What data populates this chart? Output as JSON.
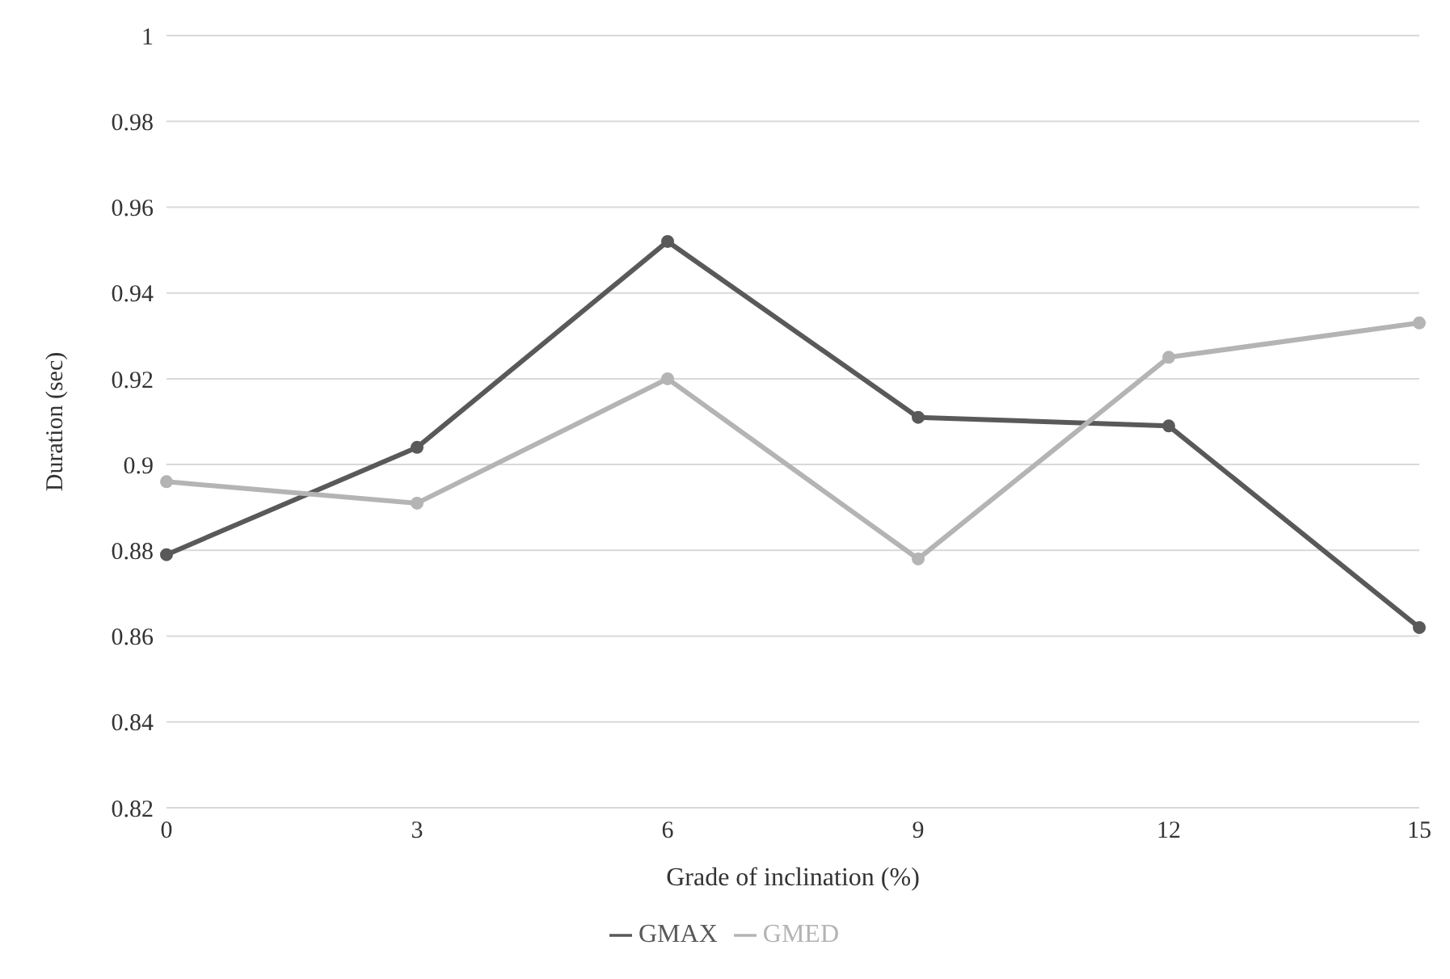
{
  "chart_data": {
    "type": "line",
    "xlabel": "Grade of inclination (%)",
    "ylabel": "Duration (sec)",
    "categories": [
      "0",
      "3",
      "6",
      "9",
      "12",
      "15"
    ],
    "series": [
      {
        "name": "GMAX",
        "color": "#595959",
        "values": [
          0.879,
          0.904,
          0.952,
          0.911,
          0.909,
          0.862
        ]
      },
      {
        "name": "GMED",
        "color": "#b4b4b4",
        "values": [
          0.896,
          0.891,
          0.92,
          0.878,
          0.925,
          0.933
        ]
      }
    ],
    "ylim": [
      0.82,
      1
    ],
    "yticks": [
      0.82,
      0.84,
      0.86,
      0.88,
      0.9,
      0.92,
      0.94,
      0.96,
      0.98,
      1
    ],
    "grid": "y",
    "legend": "bottom",
    "marker": "circle",
    "line_style": "solid"
  }
}
